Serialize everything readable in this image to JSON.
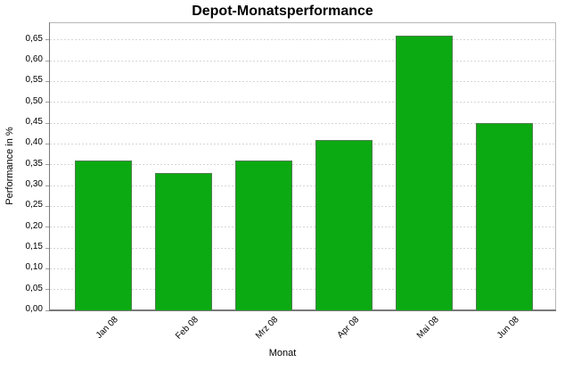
{
  "chart_data": {
    "type": "bar",
    "title": "Depot-Monatsperformance",
    "xlabel": "Monat",
    "ylabel": "Performance in %",
    "categories": [
      "Jan 08",
      "Feb 08",
      "Mrz 08",
      "Apr 08",
      "Mai 08",
      "Jun 08"
    ],
    "values": [
      0.36,
      0.33,
      0.36,
      0.41,
      0.66,
      0.45
    ],
    "ylim": [
      0,
      0.69
    ],
    "ytick_step": 0.05,
    "ytick_labels": [
      "0,00",
      "0,05",
      "0,10",
      "0,15",
      "0,20",
      "0,25",
      "0,30",
      "0,35",
      "0,40",
      "0,45",
      "0,50",
      "0,55",
      "0,60",
      "0,65"
    ],
    "decimal_separator": ",",
    "grid": "horizontal-dotted",
    "legend": "none",
    "bar_color": "#0caa12",
    "bar_outline_color": "#4f7f4f",
    "gridline_color": "#d6d6d6",
    "axis_color": "#7a7a7a",
    "background_color": "#ffffff"
  }
}
